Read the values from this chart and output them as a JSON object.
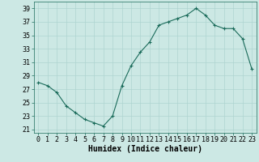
{
  "x": [
    0,
    1,
    2,
    3,
    4,
    5,
    6,
    7,
    8,
    9,
    10,
    11,
    12,
    13,
    14,
    15,
    16,
    17,
    18,
    19,
    20,
    21,
    22,
    23
  ],
  "y": [
    28,
    27.5,
    26.5,
    24.5,
    23.5,
    22.5,
    22,
    21.5,
    23,
    27.5,
    30.5,
    32.5,
    34,
    36.5,
    37,
    37.5,
    38,
    39,
    38,
    36.5,
    36,
    36,
    34.5,
    30
  ],
  "line_color": "#1a6b5a",
  "marker": "+",
  "marker_size": 3,
  "marker_linewidth": 0.8,
  "linewidth": 0.8,
  "bg_color": "#cce8e4",
  "grid_color": "#aed4d0",
  "xlabel": "Humidex (Indice chaleur)",
  "xlabel_fontsize": 7,
  "tick_fontsize": 6,
  "ylim": [
    20.5,
    40
  ],
  "xlim": [
    -0.5,
    23.5
  ],
  "yticks": [
    21,
    23,
    25,
    27,
    29,
    31,
    33,
    35,
    37,
    39
  ],
  "xticks": [
    0,
    1,
    2,
    3,
    4,
    5,
    6,
    7,
    8,
    9,
    10,
    11,
    12,
    13,
    14,
    15,
    16,
    17,
    18,
    19,
    20,
    21,
    22,
    23
  ]
}
